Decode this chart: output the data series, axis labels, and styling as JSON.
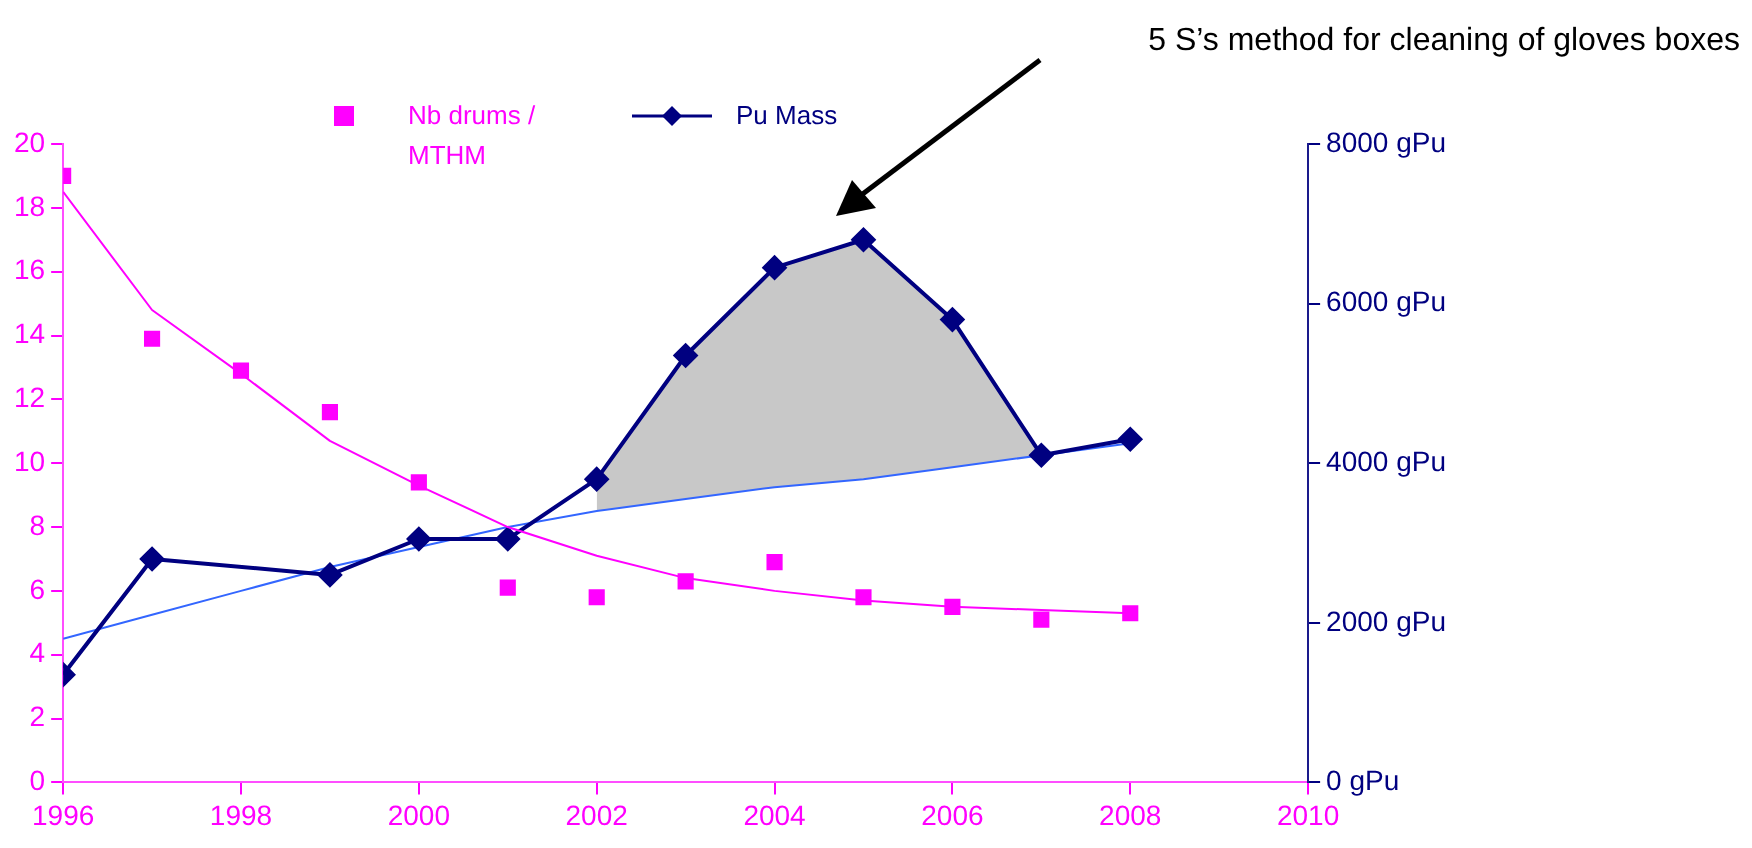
{
  "chart_data": {
    "type": "scatter",
    "xlim": [
      1996,
      2010
    ],
    "xticks": [
      1996,
      1998,
      2000,
      2002,
      2004,
      2006,
      2008,
      2010
    ],
    "ylim": [
      0,
      20
    ],
    "yticks": [
      0,
      2,
      4,
      6,
      8,
      10,
      12,
      14,
      16,
      18,
      20
    ],
    "y2lim": [
      0,
      8000
    ],
    "y2ticks": [
      {
        "value": 0,
        "label": "0 gPu"
      },
      {
        "value": 2000,
        "label": "2000 gPu"
      },
      {
        "value": 4000,
        "label": "4000 gPu"
      },
      {
        "value": 6000,
        "label": "6000 gPu"
      },
      {
        "value": 8000,
        "label": "8000 gPu"
      }
    ],
    "grid": false,
    "legend": "top",
    "annotations": [
      "5 S’s method for cleaning of gloves boxes"
    ],
    "series": [
      {
        "type": "scatter",
        "name": "Nb drums / MTHM",
        "color": "#ff00ff",
        "marker": "square",
        "x": [
          1996,
          1997,
          1998,
          1999,
          2000,
          2001,
          2002,
          2003,
          2004,
          2005,
          2006,
          2007,
          2008
        ],
        "values": [
          19.0,
          13.9,
          12.9,
          11.6,
          9.4,
          6.1,
          5.8,
          6.3,
          6.9,
          5.8,
          5.5,
          5.1,
          5.3
        ]
      },
      {
        "type": "line",
        "color": "#ff00ff",
        "marker": "none",
        "x": [
          1996,
          1997,
          1998,
          1999,
          2000,
          2001,
          2002,
          2003,
          2004,
          2005,
          2006,
          2007,
          2008
        ],
        "values": [
          18.5,
          14.8,
          12.8,
          10.7,
          9.3,
          8.0,
          7.1,
          6.4,
          6.0,
          5.7,
          5.5,
          5.4,
          5.3
        ]
      },
      {
        "type": "area",
        "color": "#c8c8c8",
        "axis": "y2",
        "marker": "none",
        "x": [
          2002,
          2003,
          2004,
          2005,
          2006,
          2007
        ],
        "values": [
          3800,
          5350,
          6450,
          6800,
          5800,
          4100
        ]
      },
      {
        "type": "line",
        "name": "Pu Mass",
        "color": "#000080",
        "axis": "y2",
        "marker": "diamond",
        "x": [
          1996,
          1997,
          1999,
          2000,
          2001,
          2002,
          2003,
          2004,
          2005,
          2006,
          2007,
          2008
        ],
        "values": [
          1350,
          2800,
          2600,
          3050,
          3050,
          3800,
          5350,
          6450,
          6800,
          5800,
          4100,
          4300
        ]
      },
      {
        "type": "line",
        "color": "#3366ff",
        "axis": "y2",
        "marker": "none",
        "x": [
          1996,
          1997,
          1998,
          1999,
          2000,
          2001,
          2002,
          2003,
          2004,
          2005,
          2006,
          2007,
          2008
        ],
        "values": [
          1800,
          2100,
          2400,
          2700,
          2950,
          3200,
          3400,
          3550,
          3700,
          3800,
          3950,
          4100,
          4250
        ]
      }
    ]
  }
}
